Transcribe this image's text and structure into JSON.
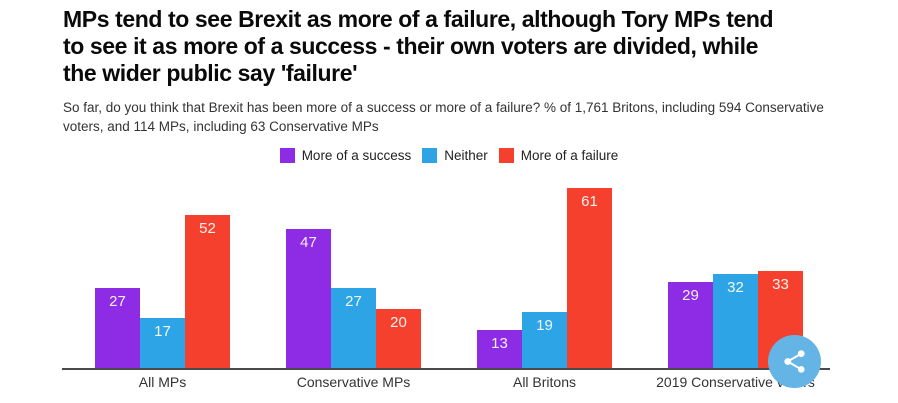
{
  "title_lines": [
    "MPs tend to see Brexit as more of a failure, although Tory MPs tend",
    "to see it as more of a success - their own voters are divided, while",
    "the wider public say 'failure'"
  ],
  "subtitle_lines": [
    "So far, do you think that Brexit has been more of a success or more of a failure? % of 1,761 Britons, including 594 Conservative",
    "voters, and 114 MPs, including 63 Conservative MPs"
  ],
  "chart_data": {
    "type": "bar",
    "categories": [
      "All MPs",
      "Conservative MPs",
      "All Britons",
      "2019 Conservative voters"
    ],
    "series": [
      {
        "name": "More of a success",
        "color": "#8d2ce4",
        "values": [
          27,
          47,
          13,
          29
        ]
      },
      {
        "name": "Neither",
        "color": "#2da4e6",
        "values": [
          17,
          27,
          19,
          32
        ]
      },
      {
        "name": "More of a failure",
        "color": "#f4402d",
        "values": [
          52,
          20,
          61,
          33
        ]
      }
    ],
    "value_labels": true,
    "ylim": [
      0,
      61
    ],
    "grid": false,
    "legend_position": "top",
    "title": "",
    "xlabel": "",
    "ylabel": ""
  },
  "colors": {
    "axis": "#4a4a4a",
    "share_button_bg": "#64b5e6",
    "share_icon": "#ffffff"
  },
  "icons": {
    "share": "share-icon"
  }
}
